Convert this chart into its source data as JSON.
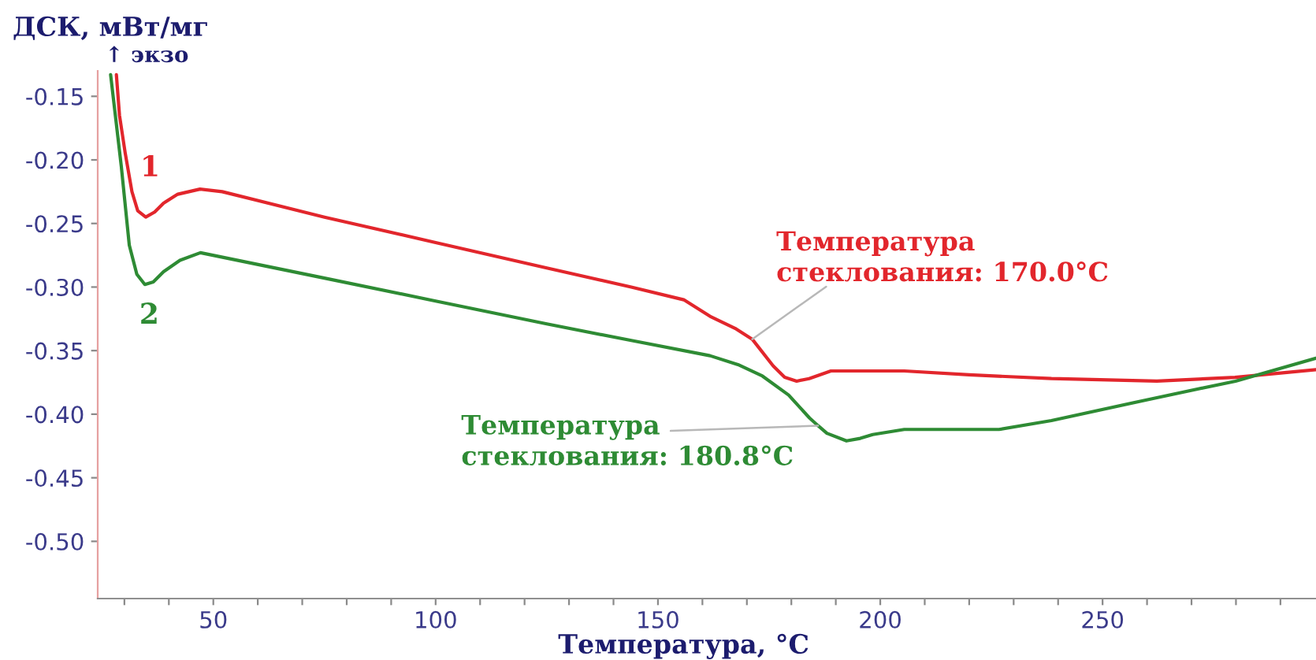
{
  "chart_data": {
    "type": "line",
    "xlabel": "Температура, °C",
    "ylabel": "ДСК, мВт/мг",
    "annotations": [
      "↑ экзо",
      {
        "text": "Температура\nстеклования: 170.0°C",
        "x": 171.2,
        "y": -0.341
      },
      {
        "text": "Температура\nстеклования: 180.8°C",
        "x": 186.0,
        "y": -0.409
      }
    ],
    "xlim": [
      24,
      298
    ],
    "ylim": [
      -0.545,
      -0.13
    ],
    "xticks": [
      {
        "value": 30,
        "label": null
      },
      {
        "value": 40,
        "label": null
      },
      50,
      {
        "value": 60,
        "label": null
      },
      {
        "value": 70,
        "label": null
      },
      {
        "value": 80,
        "label": null
      },
      {
        "value": 90,
        "label": null
      },
      100,
      {
        "value": 110,
        "label": null
      },
      {
        "value": 120,
        "label": null
      },
      {
        "value": 130,
        "label": null
      },
      {
        "value": 140,
        "label": null
      },
      150,
      {
        "value": 160,
        "label": null
      },
      {
        "value": 170,
        "label": null
      },
      {
        "value": 180,
        "label": null
      },
      {
        "value": 190,
        "label": null
      },
      200,
      {
        "value": 210,
        "label": null
      },
      {
        "value": 220,
        "label": null
      },
      {
        "value": 230,
        "label": null
      },
      {
        "value": 240,
        "label": null
      },
      250,
      {
        "value": 260,
        "label": null
      },
      {
        "value": 270,
        "label": null
      },
      {
        "value": 280,
        "label": null
      },
      {
        "value": 290,
        "label": null
      }
    ],
    "yticks": [
      {
        "value": -0.5,
        "label": "-0.50"
      },
      -0.45,
      {
        "value": -0.4,
        "label": "-0.40"
      },
      -0.35,
      {
        "value": -0.3,
        "label": "-0.30"
      },
      -0.25,
      {
        "value": -0.2,
        "label": "-0.20"
      },
      -0.15
    ],
    "line_style": "solid",
    "series": [
      {
        "name": "1",
        "color": "#e2262c",
        "x": [
          28.2,
          28.9,
          30.2,
          31.7,
          33.0,
          34.8,
          36.8,
          38.8,
          42.0,
          47.0,
          52.0,
          75.0,
          100.0,
          125.0,
          144.0,
          155.8,
          161.7,
          167.6,
          171.2,
          175.9,
          178.5,
          181.2,
          184.0,
          188.9,
          205.4,
          220.0,
          238.5,
          262.2,
          279.8,
          298.0
        ],
        "values": [
          -0.133,
          -0.165,
          -0.195,
          -0.225,
          -0.24,
          -0.245,
          -0.241,
          -0.234,
          -0.227,
          -0.223,
          -0.225,
          -0.245,
          -0.265,
          -0.285,
          -0.3,
          -0.31,
          -0.323,
          -0.333,
          -0.341,
          -0.362,
          -0.371,
          -0.374,
          -0.372,
          -0.366,
          -0.366,
          -0.369,
          -0.372,
          -0.374,
          -0.371,
          -0.365
        ]
      },
      {
        "name": "2",
        "color": "#2e8b34",
        "x": [
          26.9,
          27.8,
          29.3,
          31.1,
          32.8,
          34.6,
          36.5,
          38.8,
          42.5,
          47.1,
          75.0,
          100.0,
          125.0,
          144.0,
          161.7,
          168.0,
          173.5,
          179.4,
          184.1,
          186.0,
          188.0,
          192.4,
          195.5,
          198.3,
          205.4,
          226.7,
          238.5,
          262.2,
          279.9,
          298.0
        ],
        "values": [
          -0.133,
          -0.16,
          -0.205,
          -0.267,
          -0.29,
          -0.298,
          -0.296,
          -0.288,
          -0.279,
          -0.273,
          -0.293,
          -0.311,
          -0.329,
          -0.342,
          -0.354,
          -0.361,
          -0.37,
          -0.385,
          -0.403,
          -0.409,
          -0.415,
          -0.421,
          -0.419,
          -0.416,
          -0.412,
          -0.412,
          -0.405,
          -0.387,
          -0.374,
          -0.356
        ]
      }
    ]
  }
}
